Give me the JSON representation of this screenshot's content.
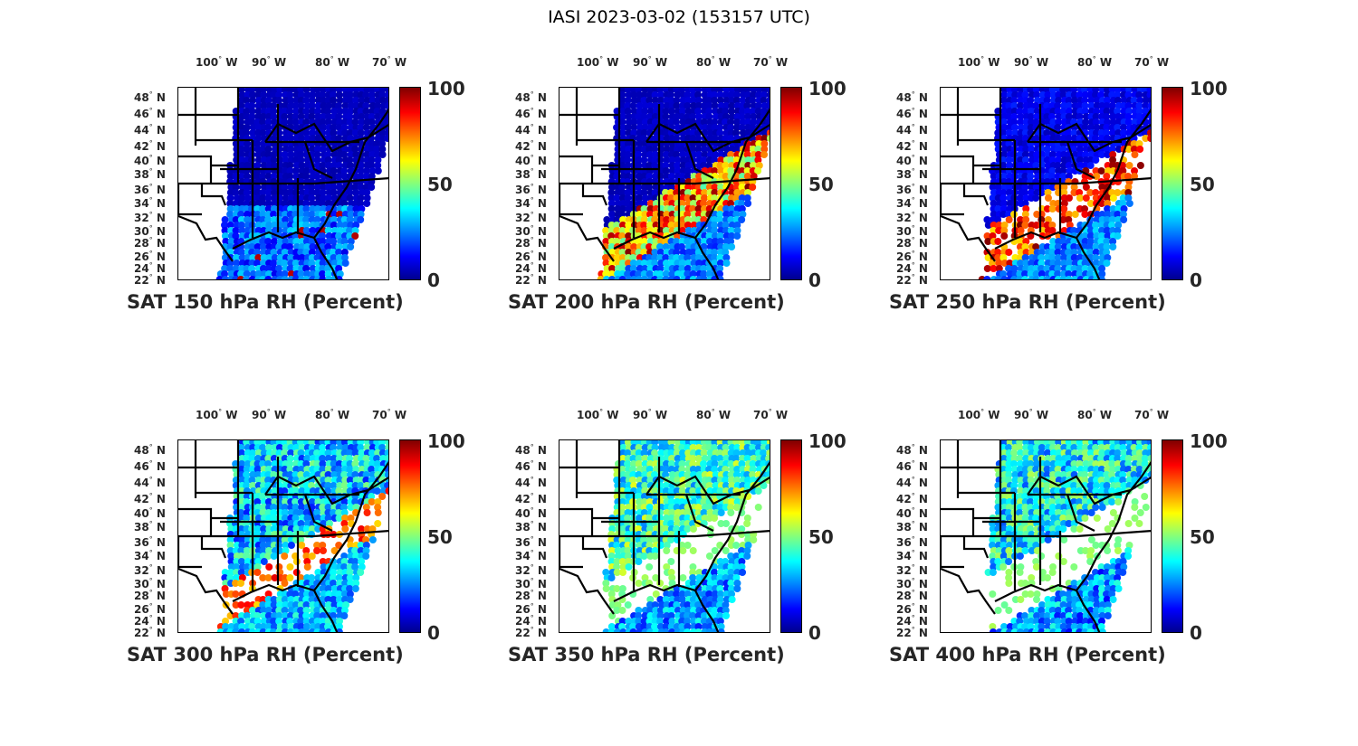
{
  "title": "IASI 2023-03-02 (153157 UTC)",
  "lon_ticks": [
    "100",
    "90",
    "80",
    "70"
  ],
  "lon_suffix": "W",
  "lat_ticks": [
    "48",
    "46",
    "44",
    "42",
    "40",
    "38",
    "36",
    "34",
    "32",
    "30",
    "28",
    "26",
    "24",
    "22"
  ],
  "lat_suffix": "N",
  "deg": "°",
  "colorbar_ticks": [
    "100",
    "50",
    "0"
  ],
  "colorbar_range": [
    0,
    100
  ],
  "colormap": "jet",
  "panels": [
    {
      "title": "SAT 150 hPa RH (Percent)"
    },
    {
      "title": "SAT 200 hPa RH (Percent)"
    },
    {
      "title": "SAT 250 hPa RH (Percent)"
    },
    {
      "title": "SAT 300 hPa RH (Percent)"
    },
    {
      "title": "SAT 350 hPa RH (Percent)"
    },
    {
      "title": "SAT 400 hPa RH (Percent)"
    }
  ]
}
